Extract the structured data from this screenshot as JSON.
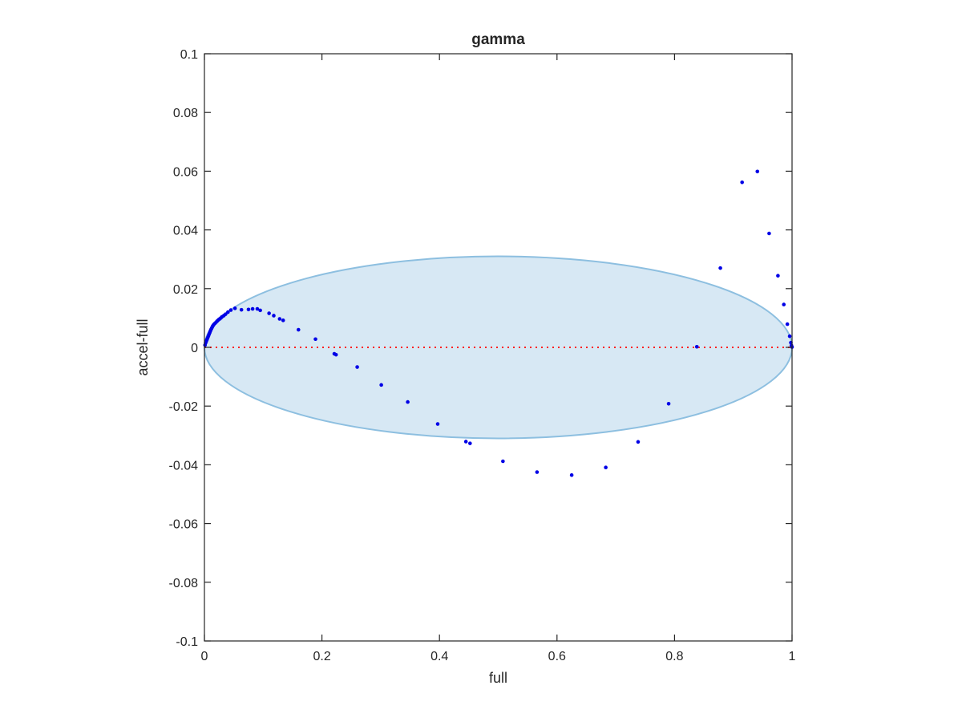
{
  "chart_data": {
    "type": "scatter",
    "title": "gamma",
    "xlabel": "full",
    "ylabel": "accel-full",
    "xlim": [
      0,
      1
    ],
    "ylim": [
      -0.1,
      0.1
    ],
    "x_ticks": [
      0,
      0.2,
      0.4,
      0.6,
      0.8,
      1
    ],
    "x_tick_labels": [
      "0",
      "0.2",
      "0.4",
      "0.6",
      "0.8",
      "1"
    ],
    "y_ticks": [
      -0.1,
      -0.08,
      -0.06,
      -0.04,
      -0.02,
      0,
      0.02,
      0.04,
      0.06,
      0.08,
      0.1
    ],
    "y_tick_labels": [
      "-0.1",
      "-0.08",
      "-0.06",
      "-0.04",
      "-0.02",
      "0",
      "0.02",
      "0.04",
      "0.06",
      "0.08",
      "0.1"
    ],
    "grid": false,
    "colors": {
      "points": "#0000e6",
      "ellipse_fill": "#d7e8f4",
      "ellipse_edge": "#8dbfe0",
      "zero_line": "#ff2020",
      "axes": "#262626"
    },
    "ellipse": {
      "center_x": 0.5,
      "center_y": 0,
      "radius_x": 0.5,
      "radius_y": 0.031
    },
    "reference_line": {
      "y": 0,
      "x_start": 0,
      "x_end": 1,
      "style": "dotted"
    },
    "series": [
      {
        "x": [
          0.001,
          0.002,
          0.003,
          0.004,
          0.005,
          0.006,
          0.007,
          0.008,
          0.009,
          0.01,
          0.011,
          0.012,
          0.013,
          0.014,
          0.015,
          0.016,
          0.018,
          0.02,
          0.022,
          0.024,
          0.026,
          0.028,
          0.03,
          0.033,
          0.036,
          0.04,
          0.045,
          0.052,
          0.063,
          0.075,
          0.082,
          0.09,
          0.095,
          0.11,
          0.118,
          0.128,
          0.134,
          0.16,
          0.189,
          0.221,
          0.224,
          0.26,
          0.301,
          0.346,
          0.397,
          0.445,
          0.452,
          0.508,
          0.566,
          0.625,
          0.683,
          0.738,
          0.79,
          0.838,
          0.878,
          0.915,
          0.941,
          0.961,
          0.976,
          0.986,
          0.992,
          0.996,
          0.998,
          0.999,
          1.0
        ],
        "y": [
          0.0008,
          0.0015,
          0.002,
          0.0025,
          0.003,
          0.0035,
          0.004,
          0.0045,
          0.005,
          0.0055,
          0.006,
          0.0064,
          0.0068,
          0.0072,
          0.0075,
          0.0078,
          0.0082,
          0.0086,
          0.009,
          0.0094,
          0.0097,
          0.01,
          0.0104,
          0.0108,
          0.0113,
          0.012,
          0.0127,
          0.0133,
          0.0128,
          0.0129,
          0.0131,
          0.0131,
          0.0126,
          0.0116,
          0.0108,
          0.0097,
          0.0092,
          0.006,
          0.0028,
          -0.0022,
          -0.0025,
          -0.0067,
          -0.0128,
          -0.0186,
          -0.0261,
          -0.0321,
          -0.0327,
          -0.0388,
          -0.0425,
          -0.0435,
          -0.0409,
          -0.0322,
          -0.0192,
          0.0002,
          0.027,
          0.0562,
          0.0599,
          0.0388,
          0.0244,
          0.0146,
          0.0079,
          0.0038,
          0.0016,
          0.0006,
          0.0001
        ]
      }
    ]
  }
}
